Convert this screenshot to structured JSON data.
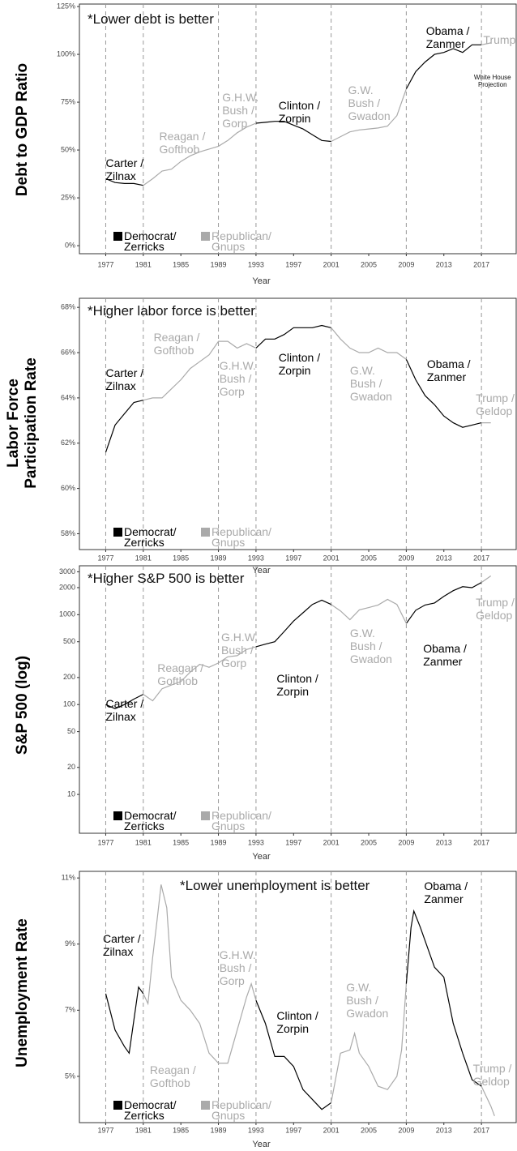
{
  "chart_data": [
    {
      "type": "line",
      "ylabel": "Debt to GDP Ratio",
      "xlabel": "Year",
      "subtitle": "*Lower debt is better",
      "x": [
        1977,
        1978,
        1979,
        1980,
        1981,
        1982,
        1983,
        1984,
        1985,
        1986,
        1987,
        1988,
        1989,
        1990,
        1991,
        1992,
        1993,
        1994,
        1995,
        1996,
        1997,
        1998,
        1999,
        2000,
        2001,
        2002,
        2003,
        2004,
        2005,
        2006,
        2007,
        2008,
        2009,
        2010,
        2011,
        2012,
        2013,
        2014,
        2015,
        2016,
        2017,
        2018
      ],
      "xlim": [
        1974.2,
        2020.7
      ],
      "xticks": [
        1977,
        1981,
        1985,
        1989,
        1993,
        1997,
        2001,
        2005,
        2009,
        2013,
        2017
      ],
      "ylim": [
        -4.2,
        126.3
      ],
      "yticks": [
        {
          "value": 0,
          "label": "0%"
        },
        {
          "value": 25,
          "label": "25%"
        },
        {
          "value": 50,
          "label": "50%"
        },
        {
          "value": 75,
          "label": "75%"
        },
        {
          "value": 100,
          "label": "100%"
        },
        {
          "value": 125,
          "label": "125%"
        }
      ],
      "vlines": [
        1977,
        1981,
        1989,
        1993,
        2001,
        2009,
        2017
      ],
      "series": [
        {
          "name": "Democrat/\nZerricks",
          "color": "#000000",
          "values": [
            35,
            33,
            32.5,
            32.5,
            31.5,
            null,
            null,
            null,
            null,
            null,
            null,
            null,
            null,
            null,
            null,
            null,
            64,
            64.5,
            65,
            65,
            63,
            61,
            58,
            55,
            54.5,
            null,
            null,
            null,
            null,
            null,
            null,
            null,
            82,
            91,
            96,
            100,
            101,
            103,
            101,
            105,
            105,
            null
          ]
        },
        {
          "name": "Republican/\nGnups",
          "color": "#aaaaaa",
          "values": [
            null,
            null,
            null,
            null,
            31.5,
            35,
            39,
            40,
            44,
            47,
            49,
            50.5,
            52,
            55,
            59,
            62,
            64,
            null,
            null,
            null,
            null,
            null,
            null,
            null,
            54.5,
            57,
            59.5,
            60.5,
            61,
            61.5,
            62.5,
            68,
            82,
            null,
            null,
            null,
            null,
            null,
            null,
            null,
            105,
            106
          ]
        }
      ],
      "annotations": [
        {
          "text": "Carter /\nZilnax",
          "x": 1977,
          "y": 46.6,
          "color": "#000000"
        },
        {
          "text": "Reagan /\nGofthob",
          "x": 1982.7,
          "y": 60.6,
          "color": "#aaaaaa"
        },
        {
          "text": "G.H.W.\nBush /\nGorp",
          "x": 1989.4,
          "y": 81,
          "color": "#aaaaaa"
        },
        {
          "text": "Clinton /\nZorpin",
          "x": 1995.4,
          "y": 76.7,
          "color": "#000000"
        },
        {
          "text": "G.W.\nBush /\nGwadon",
          "x": 2002.8,
          "y": 84.7,
          "color": "#aaaaaa"
        },
        {
          "text": "Obama /\nZanmer",
          "x": 2011.1,
          "y": 115.7,
          "color": "#000000"
        },
        {
          "text": "Trump",
          "x": 2017.2,
          "y": 111,
          "color": "#aaaaaa"
        }
      ],
      "note": {
        "text": "White House\nProjection",
        "x": 2016.2,
        "y": 90
      }
    },
    {
      "type": "line",
      "ylabel": "Labor Force\nParticipation Rate",
      "xlabel": "Year",
      "subtitle": "*Higher labor force is better",
      "x": [
        1977,
        1978,
        1979,
        1980,
        1981,
        1982,
        1983,
        1984,
        1985,
        1986,
        1987,
        1988,
        1989,
        1990,
        1991,
        1992,
        1993,
        1994,
        1995,
        1996,
        1997,
        1998,
        1999,
        2000,
        2001,
        2002,
        2003,
        2004,
        2005,
        2006,
        2007,
        2008,
        2009,
        2010,
        2011,
        2012,
        2013,
        2014,
        2015,
        2016,
        2017,
        2018
      ],
      "xlim": [
        1974.2,
        2020.7
      ],
      "xticks": [
        1977,
        1981,
        1985,
        1989,
        1993,
        1997,
        2001,
        2005,
        2009,
        2013,
        2017
      ],
      "ylim": [
        57.3,
        68.4
      ],
      "yticks": [
        {
          "value": 58,
          "label": "58%"
        },
        {
          "value": 60,
          "label": "60%"
        },
        {
          "value": 62,
          "label": "62%"
        },
        {
          "value": 64,
          "label": "64%"
        },
        {
          "value": 66,
          "label": "66%"
        },
        {
          "value": 68,
          "label": "68%"
        }
      ],
      "vlines": [
        1977,
        1981,
        1989,
        1993,
        2001,
        2009,
        2017
      ],
      "series": [
        {
          "name": "Democrat/\nZerricks",
          "color": "#000000",
          "values": [
            61.6,
            62.8,
            63.3,
            63.8,
            63.9,
            null,
            null,
            null,
            null,
            null,
            null,
            null,
            null,
            null,
            null,
            null,
            66.2,
            66.6,
            66.6,
            66.8,
            67.1,
            67.1,
            67.1,
            67.2,
            67.1,
            null,
            null,
            null,
            null,
            null,
            null,
            null,
            65.7,
            64.8,
            64.1,
            63.7,
            63.2,
            62.9,
            62.7,
            62.8,
            62.9,
            null
          ]
        },
        {
          "name": "Republican/\nGnups",
          "color": "#aaaaaa",
          "values": [
            null,
            null,
            null,
            null,
            63.9,
            64.0,
            64.0,
            64.4,
            64.8,
            65.3,
            65.6,
            65.9,
            66.5,
            66.5,
            66.2,
            66.4,
            66.2,
            null,
            null,
            null,
            null,
            null,
            null,
            null,
            67.1,
            66.6,
            66.2,
            66.0,
            66.0,
            66.2,
            66.0,
            66.0,
            65.7,
            null,
            null,
            null,
            null,
            null,
            null,
            null,
            62.9,
            62.9
          ]
        }
      ],
      "annotations": [
        {
          "text": "Carter /\nZilnax",
          "x": 1977,
          "y": 65.4,
          "color": "#000000"
        },
        {
          "text": "Reagan /\nGofthob",
          "x": 1982.1,
          "y": 66.96,
          "color": "#aaaaaa"
        },
        {
          "text": "G.H.W.\nBush /\nGorp",
          "x": 1989.1,
          "y": 65.7,
          "color": "#aaaaaa"
        },
        {
          "text": "Clinton /\nZorpin",
          "x": 1995.4,
          "y": 66.07,
          "color": "#000000"
        },
        {
          "text": "G.W.\nBush /\nGwadon",
          "x": 2003,
          "y": 65.5,
          "color": "#aaaaaa"
        },
        {
          "text": "Obama /\nZanmer",
          "x": 2011.2,
          "y": 65.8,
          "color": "#000000"
        },
        {
          "text": "Trump /\nGeldop",
          "x": 2016.4,
          "y": 64.3,
          "color": "#aaaaaa"
        }
      ]
    },
    {
      "type": "line",
      "ylabel": "S&P 500 (log)",
      "xlabel": "Year",
      "subtitle": "*Higher S&P 500 is better",
      "log_y": true,
      "x": [
        1977,
        1978,
        1979,
        1980,
        1981,
        1982,
        1983,
        1984,
        1985,
        1986,
        1987,
        1988,
        1989,
        1990,
        1991,
        1992,
        1993,
        1994,
        1995,
        1996,
        1997,
        1998,
        1999,
        2000,
        2001,
        2002,
        2003,
        2004,
        2005,
        2006,
        2007,
        2008,
        2009,
        2010,
        2011,
        2012,
        2013,
        2014,
        2015,
        2016,
        2017,
        2018
      ],
      "xlim": [
        1974.2,
        2020.7
      ],
      "xticks": [
        1977,
        1981,
        1985,
        1989,
        1993,
        1997,
        2001,
        2005,
        2009,
        2013,
        2017
      ],
      "ylim": [
        3.7,
        3500
      ],
      "yticks": [
        10,
        20,
        50,
        100,
        200,
        500,
        1000,
        2000,
        3000
      ],
      "vlines": [
        1977,
        1981,
        1989,
        1993,
        2001,
        2009,
        2017
      ],
      "series": [
        {
          "name": "Democrat/\nZerricks",
          "color": "#000000",
          "values": [
            100,
            90,
            100,
            115,
            130,
            null,
            null,
            null,
            null,
            null,
            null,
            null,
            null,
            null,
            null,
            null,
            440,
            470,
            500,
            650,
            850,
            1050,
            1300,
            1450,
            1300,
            null,
            null,
            null,
            null,
            null,
            null,
            null,
            800,
            1120,
            1280,
            1350,
            1600,
            1850,
            2050,
            2000,
            2280,
            null
          ]
        },
        {
          "name": "Republican/\nGnups",
          "color": "#aaaaaa",
          "values": [
            null,
            null,
            null,
            null,
            130,
            110,
            150,
            165,
            180,
            230,
            280,
            260,
            290,
            340,
            350,
            410,
            440,
            null,
            null,
            null,
            null,
            null,
            null,
            null,
            1300,
            1100,
            880,
            1130,
            1200,
            1280,
            1480,
            1300,
            800,
            null,
            null,
            null,
            null,
            null,
            null,
            null,
            2280,
            2700
          ]
        }
      ],
      "annotations": [
        {
          "text": "Carter /\nZilnax",
          "x": 1977,
          "y": 120,
          "color": "#000000"
        },
        {
          "text": "Reagan /\nGofthob",
          "x": 1982.5,
          "y": 300,
          "color": "#aaaaaa"
        },
        {
          "text": "G.H.W.\nBush /\nGorp",
          "x": 1989.3,
          "y": 660,
          "color": "#aaaaaa"
        },
        {
          "text": "Clinton /\nZorpin",
          "x": 1995.2,
          "y": 230,
          "color": "#000000"
        },
        {
          "text": "G.W.\nBush /\nGwadon",
          "x": 2003,
          "y": 740,
          "color": "#aaaaaa"
        },
        {
          "text": "Obama /\nZanmer",
          "x": 2010.8,
          "y": 500,
          "color": "#000000"
        },
        {
          "text": "Trump /\nGeldop",
          "x": 2016.4,
          "y": 1630,
          "color": "#aaaaaa"
        }
      ]
    },
    {
      "type": "line",
      "ylabel": "Unemployment Rate",
      "xlabel": "Year",
      "subtitle": "*Lower unemployment is better",
      "x": [
        1977,
        1978,
        1979,
        1979.5,
        1980.5,
        1981,
        1981.5,
        1982,
        1982.5,
        1982.9,
        1983.5,
        1984,
        1985,
        1986,
        1987,
        1988,
        1989,
        1990,
        1991,
        1992,
        1992.5,
        1993,
        1994,
        1995,
        1996,
        1997,
        1998,
        1999,
        2000,
        2001,
        2002,
        2003,
        2003.5,
        2004,
        2005,
        2006,
        2007,
        2008,
        2008.5,
        2009,
        2009.5,
        2009.8,
        2010.5,
        2011,
        2012,
        2013,
        2014,
        2015,
        2016,
        2017,
        2018,
        2018.4
      ],
      "xlim": [
        1974.2,
        2020.7
      ],
      "xticks": [
        1977,
        1981,
        1985,
        1989,
        1993,
        1997,
        2001,
        2005,
        2009,
        2013,
        2017
      ],
      "ylim": [
        3.6,
        11.2
      ],
      "yticks": [
        {
          "value": 5,
          "label": "5%"
        },
        {
          "value": 7,
          "label": "7%"
        },
        {
          "value": 9,
          "label": "9%"
        },
        {
          "value": 11,
          "label": "11%"
        }
      ],
      "vlines": [
        1977,
        1981,
        1989,
        1993,
        2001,
        2009,
        2017
      ],
      "series": [
        {
          "name": "Democrat/\nZerricks",
          "color": "#000000",
          "values": [
            7.5,
            6.4,
            5.9,
            5.7,
            7.7,
            7.5,
            null,
            null,
            null,
            null,
            null,
            null,
            null,
            null,
            null,
            null,
            null,
            null,
            null,
            null,
            null,
            7.3,
            6.6,
            5.6,
            5.6,
            5.3,
            4.6,
            4.3,
            4.0,
            4.2,
            null,
            null,
            null,
            null,
            null,
            null,
            null,
            null,
            null,
            7.8,
            9.5,
            10.0,
            9.5,
            9.1,
            8.3,
            8.0,
            6.6,
            5.7,
            4.9,
            4.7,
            null,
            null
          ]
        },
        {
          "name": "Republican/\nGnups",
          "color": "#aaaaaa",
          "values": [
            null,
            null,
            null,
            null,
            null,
            7.5,
            7.2,
            8.6,
            9.8,
            10.8,
            10.1,
            8.0,
            7.3,
            7.0,
            6.6,
            5.7,
            5.4,
            5.4,
            6.4,
            7.4,
            7.8,
            7.3,
            null,
            null,
            null,
            null,
            null,
            null,
            null,
            4.2,
            5.7,
            5.8,
            6.3,
            5.7,
            5.3,
            4.7,
            4.6,
            5.0,
            5.8,
            7.8,
            null,
            null,
            null,
            null,
            null,
            null,
            null,
            null,
            null,
            4.7,
            4.1,
            3.8
          ]
        }
      ],
      "annotations": [
        {
          "text": "Carter /\nZilnax",
          "x": 1976.7,
          "y": 9.36,
          "color": "#000000"
        },
        {
          "text": "Reagan /\nGofthob",
          "x": 1981.7,
          "y": 5.39,
          "color": "#aaaaaa"
        },
        {
          "text": "G.H.W.\nBush /\nGorp",
          "x": 1989.1,
          "y": 8.87,
          "color": "#aaaaaa"
        },
        {
          "text": "Clinton /\nZorpin",
          "x": 1995.2,
          "y": 7.03,
          "color": "#000000"
        },
        {
          "text": "G.W.\nBush /\nGwadon",
          "x": 2002.6,
          "y": 7.9,
          "color": "#aaaaaa"
        },
        {
          "text": "Obama /\nZanmer",
          "x": 2010.9,
          "y": 10.95,
          "color": "#000000"
        },
        {
          "text": "Trump /\nGeldop",
          "x": 2016.1,
          "y": 5.44,
          "color": "#aaaaaa"
        }
      ]
    }
  ]
}
